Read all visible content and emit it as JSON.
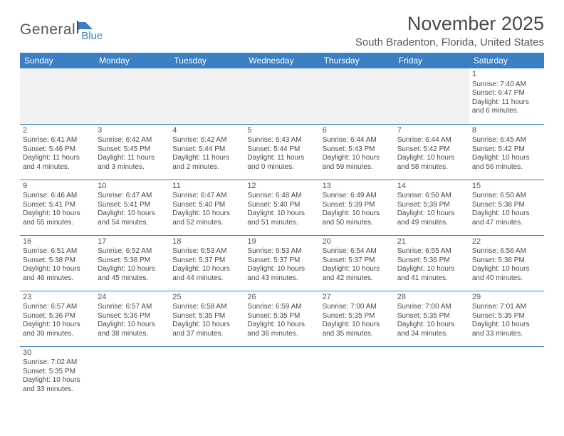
{
  "logo": {
    "text1": "General",
    "text2": "Blue"
  },
  "title": "November 2025",
  "location": "South Bradenton, Florida, United States",
  "colors": {
    "header_bg": "#3b7fc4",
    "header_text": "#ffffff",
    "border": "#3b7fc4",
    "text": "#4a4a4a",
    "empty_bg": "#f2f2f2"
  },
  "day_headers": [
    "Sunday",
    "Monday",
    "Tuesday",
    "Wednesday",
    "Thursday",
    "Friday",
    "Saturday"
  ],
  "weeks": [
    [
      null,
      null,
      null,
      null,
      null,
      null,
      {
        "n": "1",
        "sr": "Sunrise: 7:40 AM",
        "ss": "Sunset: 6:47 PM",
        "dl1": "Daylight: 11 hours",
        "dl2": "and 6 minutes."
      }
    ],
    [
      {
        "n": "2",
        "sr": "Sunrise: 6:41 AM",
        "ss": "Sunset: 5:46 PM",
        "dl1": "Daylight: 11 hours",
        "dl2": "and 4 minutes."
      },
      {
        "n": "3",
        "sr": "Sunrise: 6:42 AM",
        "ss": "Sunset: 5:45 PM",
        "dl1": "Daylight: 11 hours",
        "dl2": "and 3 minutes."
      },
      {
        "n": "4",
        "sr": "Sunrise: 6:42 AM",
        "ss": "Sunset: 5:44 PM",
        "dl1": "Daylight: 11 hours",
        "dl2": "and 2 minutes."
      },
      {
        "n": "5",
        "sr": "Sunrise: 6:43 AM",
        "ss": "Sunset: 5:44 PM",
        "dl1": "Daylight: 11 hours",
        "dl2": "and 0 minutes."
      },
      {
        "n": "6",
        "sr": "Sunrise: 6:44 AM",
        "ss": "Sunset: 5:43 PM",
        "dl1": "Daylight: 10 hours",
        "dl2": "and 59 minutes."
      },
      {
        "n": "7",
        "sr": "Sunrise: 6:44 AM",
        "ss": "Sunset: 5:42 PM",
        "dl1": "Daylight: 10 hours",
        "dl2": "and 58 minutes."
      },
      {
        "n": "8",
        "sr": "Sunrise: 6:45 AM",
        "ss": "Sunset: 5:42 PM",
        "dl1": "Daylight: 10 hours",
        "dl2": "and 56 minutes."
      }
    ],
    [
      {
        "n": "9",
        "sr": "Sunrise: 6:46 AM",
        "ss": "Sunset: 5:41 PM",
        "dl1": "Daylight: 10 hours",
        "dl2": "and 55 minutes."
      },
      {
        "n": "10",
        "sr": "Sunrise: 6:47 AM",
        "ss": "Sunset: 5:41 PM",
        "dl1": "Daylight: 10 hours",
        "dl2": "and 54 minutes."
      },
      {
        "n": "11",
        "sr": "Sunrise: 6:47 AM",
        "ss": "Sunset: 5:40 PM",
        "dl1": "Daylight: 10 hours",
        "dl2": "and 52 minutes."
      },
      {
        "n": "12",
        "sr": "Sunrise: 6:48 AM",
        "ss": "Sunset: 5:40 PM",
        "dl1": "Daylight: 10 hours",
        "dl2": "and 51 minutes."
      },
      {
        "n": "13",
        "sr": "Sunrise: 6:49 AM",
        "ss": "Sunset: 5:39 PM",
        "dl1": "Daylight: 10 hours",
        "dl2": "and 50 minutes."
      },
      {
        "n": "14",
        "sr": "Sunrise: 6:50 AM",
        "ss": "Sunset: 5:39 PM",
        "dl1": "Daylight: 10 hours",
        "dl2": "and 49 minutes."
      },
      {
        "n": "15",
        "sr": "Sunrise: 6:50 AM",
        "ss": "Sunset: 5:38 PM",
        "dl1": "Daylight: 10 hours",
        "dl2": "and 47 minutes."
      }
    ],
    [
      {
        "n": "16",
        "sr": "Sunrise: 6:51 AM",
        "ss": "Sunset: 5:38 PM",
        "dl1": "Daylight: 10 hours",
        "dl2": "and 46 minutes."
      },
      {
        "n": "17",
        "sr": "Sunrise: 6:52 AM",
        "ss": "Sunset: 5:38 PM",
        "dl1": "Daylight: 10 hours",
        "dl2": "and 45 minutes."
      },
      {
        "n": "18",
        "sr": "Sunrise: 6:53 AM",
        "ss": "Sunset: 5:37 PM",
        "dl1": "Daylight: 10 hours",
        "dl2": "and 44 minutes."
      },
      {
        "n": "19",
        "sr": "Sunrise: 6:53 AM",
        "ss": "Sunset: 5:37 PM",
        "dl1": "Daylight: 10 hours",
        "dl2": "and 43 minutes."
      },
      {
        "n": "20",
        "sr": "Sunrise: 6:54 AM",
        "ss": "Sunset: 5:37 PM",
        "dl1": "Daylight: 10 hours",
        "dl2": "and 42 minutes."
      },
      {
        "n": "21",
        "sr": "Sunrise: 6:55 AM",
        "ss": "Sunset: 5:36 PM",
        "dl1": "Daylight: 10 hours",
        "dl2": "and 41 minutes."
      },
      {
        "n": "22",
        "sr": "Sunrise: 6:56 AM",
        "ss": "Sunset: 5:36 PM",
        "dl1": "Daylight: 10 hours",
        "dl2": "and 40 minutes."
      }
    ],
    [
      {
        "n": "23",
        "sr": "Sunrise: 6:57 AM",
        "ss": "Sunset: 5:36 PM",
        "dl1": "Daylight: 10 hours",
        "dl2": "and 39 minutes."
      },
      {
        "n": "24",
        "sr": "Sunrise: 6:57 AM",
        "ss": "Sunset: 5:36 PM",
        "dl1": "Daylight: 10 hours",
        "dl2": "and 38 minutes."
      },
      {
        "n": "25",
        "sr": "Sunrise: 6:58 AM",
        "ss": "Sunset: 5:35 PM",
        "dl1": "Daylight: 10 hours",
        "dl2": "and 37 minutes."
      },
      {
        "n": "26",
        "sr": "Sunrise: 6:59 AM",
        "ss": "Sunset: 5:35 PM",
        "dl1": "Daylight: 10 hours",
        "dl2": "and 36 minutes."
      },
      {
        "n": "27",
        "sr": "Sunrise: 7:00 AM",
        "ss": "Sunset: 5:35 PM",
        "dl1": "Daylight: 10 hours",
        "dl2": "and 35 minutes."
      },
      {
        "n": "28",
        "sr": "Sunrise: 7:00 AM",
        "ss": "Sunset: 5:35 PM",
        "dl1": "Daylight: 10 hours",
        "dl2": "and 34 minutes."
      },
      {
        "n": "29",
        "sr": "Sunrise: 7:01 AM",
        "ss": "Sunset: 5:35 PM",
        "dl1": "Daylight: 10 hours",
        "dl2": "and 33 minutes."
      }
    ],
    [
      {
        "n": "30",
        "sr": "Sunrise: 7:02 AM",
        "ss": "Sunset: 5:35 PM",
        "dl1": "Daylight: 10 hours",
        "dl2": "and 33 minutes."
      },
      null,
      null,
      null,
      null,
      null,
      null
    ]
  ]
}
